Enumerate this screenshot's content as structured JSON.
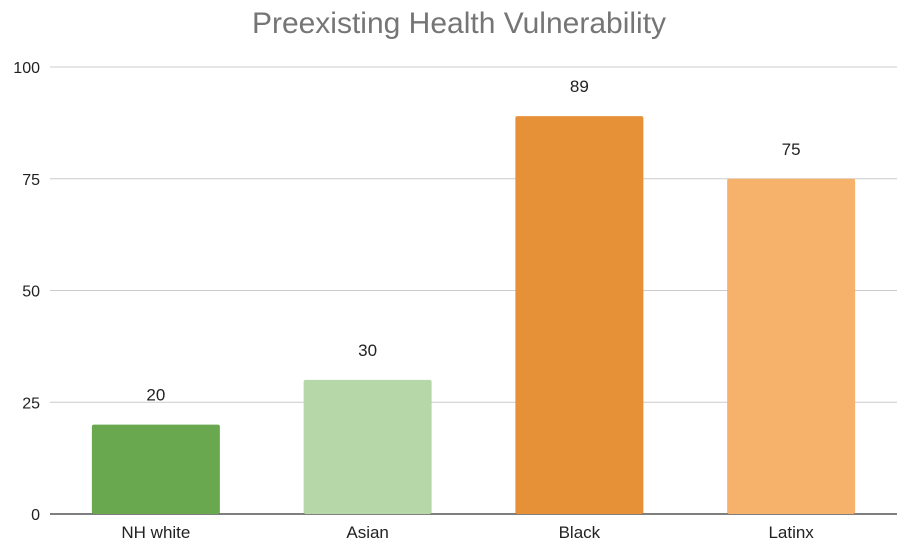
{
  "chart_data": {
    "type": "bar",
    "title": "Preexisting Health Vulnerability",
    "xlabel": "",
    "ylabel": "",
    "categories": [
      "NH white",
      "Asian",
      "Black",
      "Latinx"
    ],
    "values": [
      20,
      30,
      89,
      75
    ],
    "data_labels": [
      "20",
      "30",
      "89",
      "75"
    ],
    "colors": [
      "#6aa84f",
      "#b6d7a8",
      "#e69138",
      "#f6b26b"
    ],
    "ylim": [
      0,
      100
    ],
    "yticks": [
      0,
      25,
      50,
      75,
      100
    ],
    "ytick_labels": [
      "0",
      "25",
      "50",
      "75",
      "100"
    ],
    "grid": true,
    "legend": "none"
  }
}
